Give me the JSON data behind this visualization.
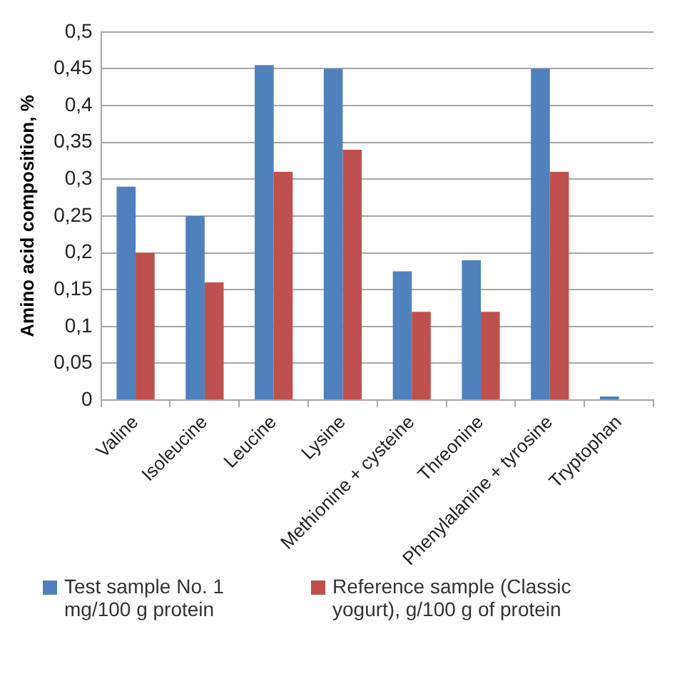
{
  "chart_data": {
    "type": "bar",
    "ylabel": "Amino acid composition, %",
    "categories": [
      "Valine",
      "Isoleucine",
      "Leucine",
      "Lysine",
      "Methionine + cysteine",
      "Threonine",
      "Phenylalanine + tyrosine",
      "Tryptophan"
    ],
    "series": [
      {
        "name": "Test sample No. 1 mg/100 g protein",
        "color": "#4f81bd",
        "values": [
          0.29,
          0.25,
          0.455,
          0.45,
          0.175,
          0.19,
          0.45,
          0.005
        ]
      },
      {
        "name": "Reference sample (Classic yogurt), g/100 g of protein",
        "color": "#c0504d",
        "values": [
          0.2,
          0.16,
          0.31,
          0.34,
          0.12,
          0.12,
          0.31,
          null
        ]
      }
    ],
    "ylim": [
      0,
      0.5
    ],
    "yticks": [
      {
        "value": 0,
        "label": "0"
      },
      {
        "value": 0.05,
        "label": "0,05"
      },
      {
        "value": 0.1,
        "label": "0,1"
      },
      {
        "value": 0.15,
        "label": "0,15"
      },
      {
        "value": 0.2,
        "label": "0,2"
      },
      {
        "value": 0.25,
        "label": "0,25"
      },
      {
        "value": 0.3,
        "label": "0,3"
      },
      {
        "value": 0.35,
        "label": "0,35"
      },
      {
        "value": 0.4,
        "label": "0,4"
      },
      {
        "value": 0.45,
        "label": "0,45"
      },
      {
        "value": 0.5,
        "label": "0,5"
      }
    ],
    "grid": "y",
    "legend": "bottom"
  }
}
